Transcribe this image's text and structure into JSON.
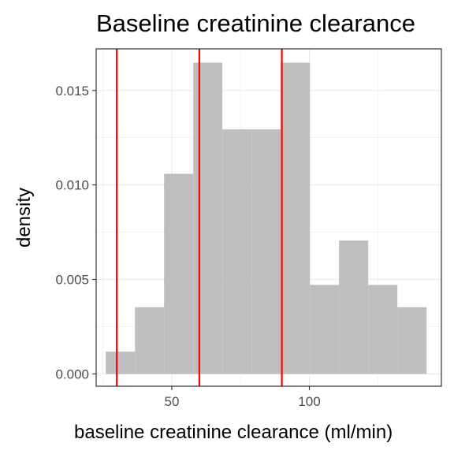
{
  "chart_data": {
    "type": "bar",
    "title": "Baseline creatinine clearance",
    "xlabel": "baseline creatinine clearance (ml/min)",
    "ylabel": "density",
    "xlim": [
      22.5,
      148
    ],
    "ylim": [
      -0.00065,
      0.0172
    ],
    "x_ticks": [
      50,
      100
    ],
    "x_tick_labels": [
      "50",
      "100"
    ],
    "y_ticks": [
      0,
      0.005,
      0.01,
      0.015
    ],
    "y_tick_labels": [
      "0.000",
      "0.005",
      "0.010",
      "0.015"
    ],
    "grid": true,
    "bins": [
      {
        "x0": 26.0,
        "x1": 36.6,
        "density": 0.00118
      },
      {
        "x0": 36.6,
        "x1": 47.2,
        "density": 0.00353
      },
      {
        "x0": 47.2,
        "x1": 57.8,
        "density": 0.01059
      },
      {
        "x0": 57.8,
        "x1": 68.4,
        "density": 0.01647
      },
      {
        "x0": 68.4,
        "x1": 79.0,
        "density": 0.01294
      },
      {
        "x0": 79.0,
        "x1": 89.6,
        "density": 0.01294
      },
      {
        "x0": 89.6,
        "x1": 100.2,
        "density": 0.01647
      },
      {
        "x0": 100.2,
        "x1": 110.8,
        "density": 0.00471
      },
      {
        "x0": 110.8,
        "x1": 121.4,
        "density": 0.00706
      },
      {
        "x0": 121.4,
        "x1": 132.0,
        "density": 0.00471
      },
      {
        "x0": 132.0,
        "x1": 142.6,
        "density": 0.00353
      }
    ],
    "vlines": [
      30,
      60,
      90
    ],
    "colors": {
      "bar_fill": "#bebebe",
      "vline": "#ff0000",
      "grid": "#ebebeb",
      "panel_border": "#333333",
      "tick_label": "#4d4d4d"
    }
  }
}
